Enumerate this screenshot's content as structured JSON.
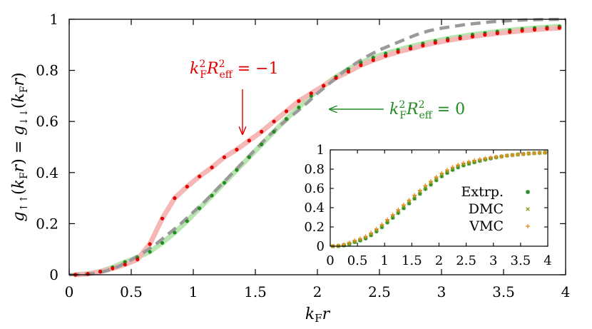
{
  "chart_data": [
    {
      "type": "line",
      "xlabel": "k_F r",
      "ylabel": "g_{↑↑}(k_F r) = g_{↓↓}(k_F r)",
      "xlim": [
        0,
        4
      ],
      "ylim": [
        0,
        1
      ],
      "xticks": [
        "0",
        "0.5",
        "1",
        "1.5",
        "2",
        "2.5",
        "3",
        "3.5",
        "4"
      ],
      "yticks": [
        "0",
        "0.2",
        "0.4",
        "0.6",
        "0.8",
        "1"
      ],
      "grid": false,
      "annotations": [
        {
          "text": "k_F^2 R_eff^2 = −1",
          "color": "#e00000",
          "points_to": [
            1.4,
            0.54
          ]
        },
        {
          "text": "k_F^2 R_eff^2 = 0",
          "color": "#228b22",
          "points_to": [
            2.07,
            0.655
          ]
        }
      ],
      "series": [
        {
          "annotation_text": "k_F^2 R_eff^2 = 0",
          "color": "#228b22",
          "band_color": "#b8e6b0",
          "x": [
            0.05,
            0.15,
            0.25,
            0.35,
            0.45,
            0.55,
            0.65,
            0.75,
            0.85,
            0.95,
            1.05,
            1.15,
            1.25,
            1.35,
            1.45,
            1.55,
            1.65,
            1.75,
            1.85,
            1.95,
            2.05,
            2.15,
            2.25,
            2.35,
            2.45,
            2.55,
            2.65,
            2.75,
            2.85,
            2.95,
            3.05,
            3.15,
            3.25,
            3.35,
            3.45,
            3.55,
            3.65,
            3.75,
            3.85,
            3.95
          ],
          "y": [
            0.0,
            0.004,
            0.013,
            0.029,
            0.05,
            0.068,
            0.09,
            0.125,
            0.165,
            0.21,
            0.26,
            0.31,
            0.36,
            0.41,
            0.46,
            0.51,
            0.56,
            0.61,
            0.655,
            0.7,
            0.74,
            0.775,
            0.805,
            0.83,
            0.85,
            0.866,
            0.88,
            0.893,
            0.905,
            0.915,
            0.924,
            0.932,
            0.94,
            0.946,
            0.952,
            0.957,
            0.962,
            0.966,
            0.969,
            0.972
          ]
        },
        {
          "annotation_text": "k_F^2 R_eff^2 = −1",
          "color": "#e00000",
          "band_color": "#f6b7b7",
          "x": [
            0.05,
            0.15,
            0.25,
            0.35,
            0.45,
            0.55,
            0.65,
            0.75,
            0.85,
            0.95,
            1.05,
            1.15,
            1.25,
            1.35,
            1.45,
            1.55,
            1.65,
            1.75,
            1.85,
            1.95,
            2.05,
            2.15,
            2.25,
            2.35,
            2.45,
            2.55,
            2.65,
            2.75,
            2.85,
            2.95,
            3.05,
            3.15,
            3.25,
            3.35,
            3.45,
            3.55,
            3.65,
            3.75,
            3.85,
            3.95
          ],
          "y": [
            0.0,
            0.003,
            0.012,
            0.025,
            0.04,
            0.06,
            0.12,
            0.22,
            0.3,
            0.345,
            0.385,
            0.42,
            0.46,
            0.49,
            0.525,
            0.56,
            0.6,
            0.64,
            0.68,
            0.71,
            0.74,
            0.77,
            0.795,
            0.82,
            0.84,
            0.857,
            0.872,
            0.885,
            0.897,
            0.908,
            0.917,
            0.925,
            0.932,
            0.939,
            0.945,
            0.95,
            0.955,
            0.959,
            0.963,
            0.966
          ]
        },
        {
          "color": "#9a9a9a",
          "style": "dashed",
          "x": [
            0.0,
            0.1,
            0.2,
            0.3,
            0.4,
            0.5,
            0.6,
            0.7,
            0.8,
            0.9,
            1.0,
            1.1,
            1.2,
            1.3,
            1.4,
            1.5,
            1.6,
            1.7,
            1.8,
            1.9,
            2.0,
            2.1,
            2.2,
            2.3,
            2.4,
            2.5,
            2.6,
            2.7,
            2.8,
            2.9,
            3.0,
            3.2,
            3.4,
            3.6,
            3.8,
            4.0
          ],
          "y": [
            0.0,
            0.001,
            0.005,
            0.015,
            0.033,
            0.058,
            0.087,
            0.12,
            0.16,
            0.2,
            0.245,
            0.29,
            0.34,
            0.39,
            0.44,
            0.49,
            0.54,
            0.585,
            0.625,
            0.665,
            0.71,
            0.75,
            0.79,
            0.825,
            0.855,
            0.88,
            0.9,
            0.92,
            0.94,
            0.955,
            0.965,
            0.98,
            0.99,
            0.996,
            0.999,
            1.0
          ]
        }
      ]
    },
    {
      "type": "scatter",
      "xlim": [
        0,
        4
      ],
      "ylim": [
        0,
        1
      ],
      "xticks": [
        "0",
        "0.5",
        "1",
        "1.5",
        "2",
        "2.5",
        "3",
        "3.5",
        "4"
      ],
      "yticks": [
        "0",
        "0.2",
        "0.4",
        "0.6",
        "0.8",
        "1"
      ],
      "legend_position": "center-right",
      "series": [
        {
          "name": "Extrp.",
          "color": "#1a8a1a",
          "marker": "asterisk",
          "y_offset": -0.015
        },
        {
          "name": "DMC",
          "color": "#8a9a10",
          "marker": "cross",
          "y_offset": 0.0
        },
        {
          "name": "VMC",
          "color": "#f08a20",
          "marker": "plus",
          "y_offset": 0.02
        }
      ],
      "x": [
        0.05,
        0.15,
        0.25,
        0.35,
        0.45,
        0.55,
        0.65,
        0.75,
        0.85,
        0.95,
        1.05,
        1.15,
        1.25,
        1.35,
        1.45,
        1.55,
        1.65,
        1.75,
        1.85,
        1.95,
        2.05,
        2.15,
        2.25,
        2.35,
        2.45,
        2.55,
        2.65,
        2.75,
        2.85,
        2.95,
        3.05,
        3.15,
        3.25,
        3.35,
        3.45,
        3.55,
        3.65,
        3.75,
        3.85,
        3.95
      ],
      "base_y": [
        0.0,
        0.004,
        0.013,
        0.029,
        0.05,
        0.068,
        0.09,
        0.125,
        0.165,
        0.21,
        0.26,
        0.31,
        0.36,
        0.41,
        0.46,
        0.51,
        0.56,
        0.61,
        0.655,
        0.7,
        0.74,
        0.775,
        0.805,
        0.83,
        0.85,
        0.866,
        0.88,
        0.893,
        0.905,
        0.915,
        0.924,
        0.932,
        0.94,
        0.946,
        0.952,
        0.957,
        0.962,
        0.966,
        0.969,
        0.972
      ]
    }
  ]
}
